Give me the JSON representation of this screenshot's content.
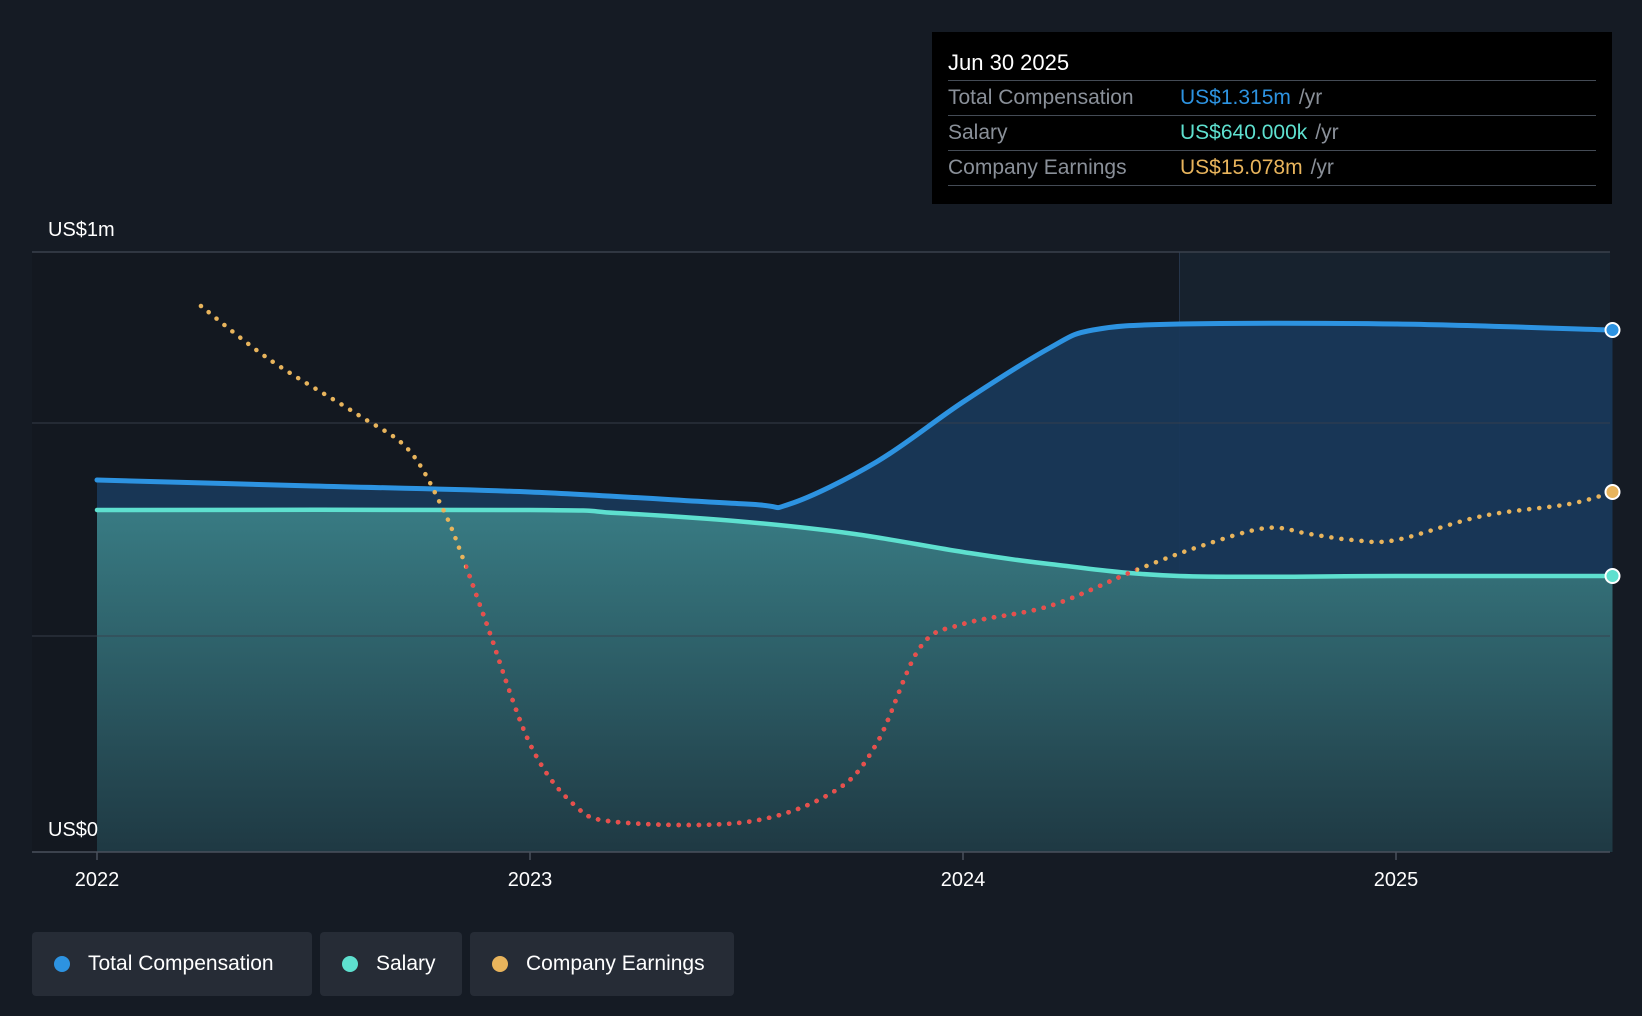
{
  "chart_data": {
    "type": "line",
    "y_axis": {
      "label_top": "US$1m",
      "label_bottom": "US$0",
      "ylim": [
        0,
        1.0
      ]
    },
    "x_axis": {
      "ticks": [
        2022,
        2023,
        2024,
        2025
      ],
      "labels": [
        "2022",
        "2023",
        "2024",
        "2025"
      ]
    },
    "series": [
      {
        "name": "Total Compensation",
        "key": "total",
        "color": "#2d93e1",
        "style": "solid-area",
        "points": [
          [
            2022.0,
            0.62
          ],
          [
            2022.5,
            0.61
          ],
          [
            2023.0,
            0.6
          ],
          [
            2023.5,
            0.58
          ],
          [
            2023.6,
            0.58
          ],
          [
            2023.8,
            0.65
          ],
          [
            2024.0,
            0.75
          ],
          [
            2024.2,
            0.84
          ],
          [
            2024.3,
            0.87
          ],
          [
            2024.5,
            0.88
          ],
          [
            2025.0,
            0.88
          ],
          [
            2025.5,
            0.87
          ]
        ]
      },
      {
        "name": "Salary",
        "key": "salary",
        "color": "#5ee0cf",
        "style": "solid-area",
        "points": [
          [
            2022.0,
            0.57
          ],
          [
            2023.0,
            0.57
          ],
          [
            2023.2,
            0.565
          ],
          [
            2023.5,
            0.55
          ],
          [
            2023.75,
            0.53
          ],
          [
            2024.0,
            0.5
          ],
          [
            2024.2,
            0.48
          ],
          [
            2024.5,
            0.46
          ],
          [
            2025.0,
            0.46
          ],
          [
            2025.5,
            0.46
          ]
        ]
      },
      {
        "name": "Company Earnings",
        "key": "earnings",
        "color": "#e8b45c",
        "negative_color": "#e84d4d",
        "style": "dotted",
        "points": [
          [
            2022.24,
            0.91
          ],
          [
            2022.4,
            0.82
          ],
          [
            2022.6,
            0.73
          ],
          [
            2022.72,
            0.67
          ],
          [
            2022.8,
            0.57
          ],
          [
            2022.85,
            0.48
          ],
          [
            2022.9,
            0.38
          ],
          [
            2023.0,
            0.18
          ],
          [
            2023.1,
            0.08
          ],
          [
            2023.2,
            0.05
          ],
          [
            2023.5,
            0.05
          ],
          [
            2023.7,
            0.1
          ],
          [
            2023.8,
            0.18
          ],
          [
            2023.9,
            0.34
          ],
          [
            2024.0,
            0.38
          ],
          [
            2024.2,
            0.41
          ],
          [
            2024.4,
            0.47
          ],
          [
            2024.55,
            0.51
          ],
          [
            2024.7,
            0.54
          ],
          [
            2024.8,
            0.53
          ],
          [
            2024.9,
            0.52
          ],
          [
            2025.0,
            0.52
          ],
          [
            2025.2,
            0.56
          ],
          [
            2025.4,
            0.58
          ],
          [
            2025.5,
            0.6
          ]
        ]
      }
    ]
  },
  "tooltip": {
    "date": "Jun 30 2025",
    "rows": [
      {
        "label": "Total Compensation",
        "value": "US$1.315m",
        "unit": "/yr",
        "color": "#2d93e1"
      },
      {
        "label": "Salary",
        "value": "US$640.000k",
        "unit": "/yr",
        "color": "#5ee0cf"
      },
      {
        "label": "Company Earnings",
        "value": "US$15.078m",
        "unit": "/yr",
        "color": "#e8b45c"
      }
    ]
  },
  "legend": [
    {
      "label": "Total Compensation",
      "color": "#2d93e1"
    },
    {
      "label": "Salary",
      "color": "#5ee0cf"
    },
    {
      "label": "Company Earnings",
      "color": "#e8b45c"
    }
  ]
}
